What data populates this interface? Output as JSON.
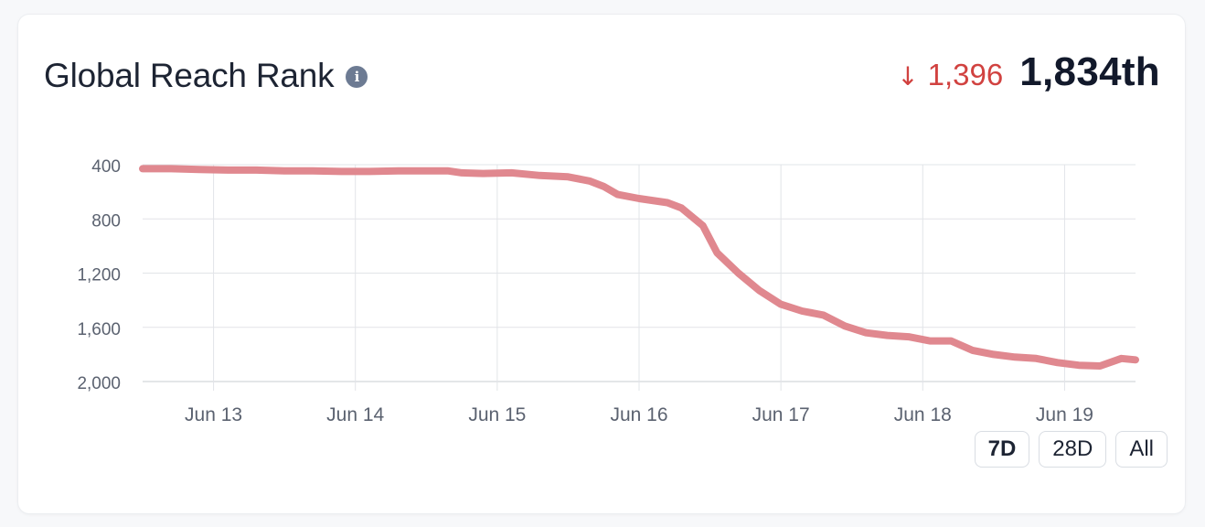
{
  "header": {
    "title": "Global Reach Rank",
    "info_icon": "info-icon",
    "change_arrow": "↓",
    "change_value": "1,396",
    "current_rank": "1,834th"
  },
  "colors": {
    "line": "#e0888f",
    "change": "#d14240",
    "grid": "#e2e4e8",
    "axis_text": "#5b6270"
  },
  "range_buttons": [
    {
      "label": "7D",
      "active": true
    },
    {
      "label": "28D",
      "active": false
    },
    {
      "label": "All",
      "active": false
    }
  ],
  "chart_data": {
    "type": "line",
    "title": "Global Reach Rank",
    "xlabel": "",
    "ylabel": "",
    "y_inverted": true,
    "ylim": [
      2000,
      400
    ],
    "y_ticks": [
      400,
      800,
      1200,
      1600,
      2000
    ],
    "y_tick_labels": [
      "400",
      "800",
      "1,200",
      "1,600",
      "2,000"
    ],
    "x_ticks": [
      "Jun 13",
      "Jun 14",
      "Jun 15",
      "Jun 16",
      "Jun 17",
      "Jun 18",
      "Jun 19"
    ],
    "x_range": [
      12.5,
      19.5
    ],
    "grid": true,
    "series": [
      {
        "x": [
          12.5,
          12.7,
          12.9,
          13.1,
          13.3,
          13.5,
          13.7,
          13.9,
          14.1,
          14.3,
          14.5,
          14.65,
          14.75,
          14.9,
          15.1,
          15.3,
          15.5,
          15.65,
          15.75,
          15.85,
          16.0,
          16.2,
          16.3,
          16.45,
          16.55,
          16.7,
          16.85,
          17.0,
          17.15,
          17.3,
          17.45,
          17.6,
          17.75,
          17.9,
          18.05,
          18.2,
          18.35,
          18.5,
          18.65,
          18.8,
          18.95,
          19.1,
          19.25,
          19.4,
          19.5
        ],
        "values": [
          430,
          430,
          435,
          440,
          440,
          445,
          445,
          450,
          450,
          445,
          445,
          445,
          460,
          465,
          460,
          480,
          490,
          520,
          560,
          620,
          650,
          680,
          720,
          850,
          1050,
          1200,
          1330,
          1430,
          1480,
          1510,
          1590,
          1640,
          1660,
          1670,
          1700,
          1700,
          1770,
          1800,
          1820,
          1830,
          1860,
          1880,
          1885,
          1830,
          1840
        ]
      }
    ]
  }
}
